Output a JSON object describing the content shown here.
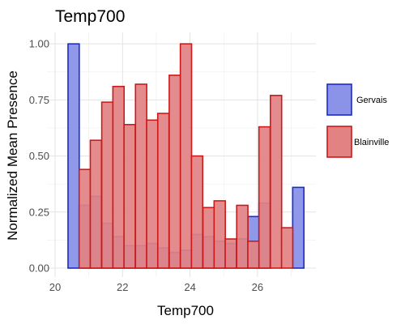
{
  "chart_data": {
    "type": "bar",
    "title": "Temp700",
    "xlabel": "Temp700",
    "ylabel": "Normalized Mean Presence",
    "xlim": [
      20,
      27.9
    ],
    "ylim": [
      0,
      1.08
    ],
    "x_ticks": [
      20,
      22,
      24,
      26
    ],
    "y_ticks": [
      0.0,
      0.25,
      0.5,
      0.75,
      1.0
    ],
    "x_tick_labels": [
      "20",
      "22",
      "24",
      "26"
    ],
    "y_tick_labels": [
      "0.00",
      "0.25",
      "0.50",
      "0.75",
      "1.00"
    ],
    "bin_width": 0.333,
    "bin_centers": [
      20.55,
      20.88,
      21.21,
      21.55,
      21.88,
      22.21,
      22.55,
      22.88,
      23.21,
      23.55,
      23.88,
      24.21,
      24.55,
      24.88,
      25.21,
      25.55,
      25.88,
      26.21,
      26.55,
      26.88,
      27.21
    ],
    "series": [
      {
        "name": "Gervais",
        "fill": "#8a93e8",
        "stroke": "#1c2bcc",
        "values": [
          1.0,
          0.28,
          0.32,
          0.2,
          0.14,
          0.1,
          0.1,
          0.11,
          0.09,
          0.07,
          0.08,
          0.15,
          0.14,
          0.12,
          0.11,
          0.13,
          0.23,
          0.29,
          0.0,
          0.0,
          0.36
        ]
      },
      {
        "name": "Blainville",
        "fill": "#e28283",
        "stroke": "#cc1a1a",
        "values": [
          0.0,
          0.44,
          0.57,
          0.74,
          0.81,
          0.64,
          0.82,
          0.66,
          0.69,
          0.86,
          1.0,
          0.5,
          0.27,
          0.3,
          0.13,
          0.28,
          0.12,
          0.63,
          0.77,
          0.18,
          0.0
        ]
      }
    ],
    "grid": true,
    "legend_position": "right"
  }
}
